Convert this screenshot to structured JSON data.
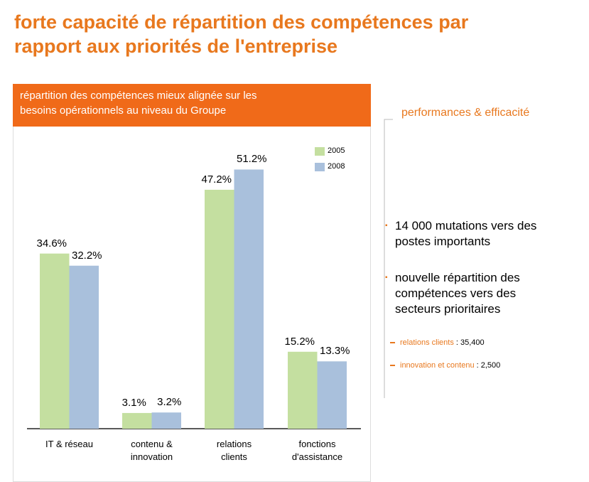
{
  "title": "forte capacité de répartition des compétences par\nrapport aux priorités de l'entreprise",
  "chart_data": {
    "type": "bar",
    "title": "répartition des compétences mieux alignée sur les\nbesoins opérationnels au niveau du Groupe",
    "categories": [
      "IT & réseau",
      "contenu &\ninnovation",
      "relations\nclients",
      "fonctions\nd'assistance"
    ],
    "series": [
      {
        "name": "2005",
        "color": "#c4dfa0",
        "values": [
          34.6,
          3.1,
          47.2,
          15.2
        ],
        "value_labels": [
          "34.6%",
          "3.1%",
          "47.2%",
          "15.2%"
        ]
      },
      {
        "name": "2008",
        "color": "#a9c0dc",
        "values": [
          32.2,
          3.2,
          51.2,
          13.3
        ],
        "value_labels": [
          "32.2%",
          "3.2%",
          "51.2%",
          "13.3%"
        ]
      }
    ]
  },
  "side": {
    "heading": "performances & efficacité",
    "bullets": [
      "14 000 mutations vers des\npostes importants",
      "nouvelle répartition des\ncompétences vers des\nsecteurs prioritaires"
    ],
    "sub_bullets": [
      {
        "label": "relations clients",
        "value": " : 35,400"
      },
      {
        "label": "innovation et contenu",
        "value": " : 2,500"
      }
    ]
  }
}
